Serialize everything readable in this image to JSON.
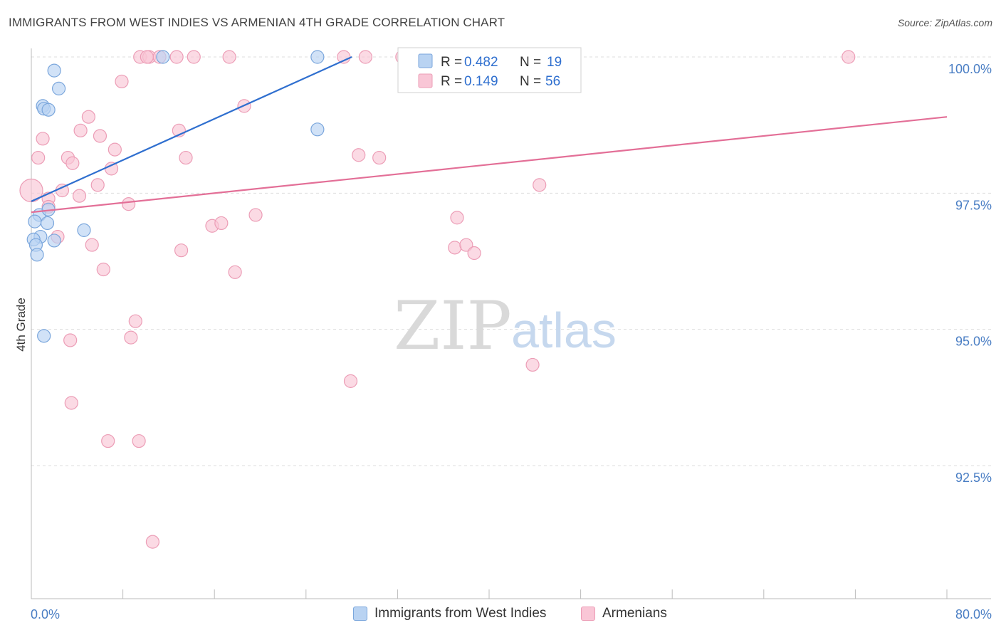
{
  "title": "IMMIGRANTS FROM WEST INDIES VS ARMENIAN 4TH GRADE CORRELATION CHART",
  "source": "Source: ZipAtlas.com",
  "watermark": {
    "part1": "ZIP",
    "part2": "atlas"
  },
  "colors": {
    "blue_fill": "#b9d3f2",
    "blue_stroke": "#7aa6dc",
    "blue_line": "#2f6fcf",
    "pink_fill": "#f9c6d6",
    "pink_stroke": "#ec9db6",
    "pink_line": "#e36f97",
    "tick_text": "#4a7ec4",
    "grid": "#dddddd"
  },
  "legend_top": {
    "rows": [
      {
        "r_label": "R = ",
        "r_value": "0.482",
        "n_label": "N = ",
        "n_value": "19",
        "color": "blue"
      },
      {
        "r_label": "R = ",
        "r_value": "0.149",
        "n_label": "N = ",
        "n_value": "56",
        "color": "pink"
      }
    ]
  },
  "legend_bottom": [
    {
      "label": "Immigrants from West Indies",
      "color": "blue"
    },
    {
      "label": "Armenians",
      "color": "pink"
    }
  ],
  "chart_data": {
    "type": "scatter",
    "title": "IMMIGRANTS FROM WEST INDIES VS ARMENIAN 4TH GRADE CORRELATION CHART",
    "xlabel": "",
    "ylabel": "4th Grade",
    "xlim": [
      0,
      80
    ],
    "ylim": [
      90.9,
      100.4
    ],
    "x_tick_labels": [
      "0.0%",
      "80.0%"
    ],
    "y_ticks": [
      92.5,
      95.0,
      97.5,
      100.0
    ],
    "y_tick_labels": [
      "92.5%",
      "95.0%",
      "97.5%",
      "100.0%"
    ],
    "grid": "horizontal dashed",
    "legend": "top-center",
    "series": [
      {
        "name": "Immigrants from West Indies",
        "color": "blue",
        "r": 0.482,
        "n": 19,
        "trend": {
          "x": [
            0,
            28.0
          ],
          "y": [
            97.35,
            100.0
          ]
        },
        "points": [
          [
            2.0,
            99.75
          ],
          [
            2.4,
            99.42
          ],
          [
            1.0,
            99.1
          ],
          [
            1.1,
            99.05
          ],
          [
            1.5,
            99.03
          ],
          [
            25.0,
            98.67
          ],
          [
            11.5,
            100.0
          ],
          [
            25.0,
            100.0
          ],
          [
            0.7,
            97.1
          ],
          [
            1.5,
            97.2
          ],
          [
            0.3,
            96.98
          ],
          [
            1.4,
            96.95
          ],
          [
            0.8,
            96.7
          ],
          [
            0.2,
            96.65
          ],
          [
            4.6,
            96.82
          ],
          [
            2.0,
            96.63
          ],
          [
            0.4,
            96.55
          ],
          [
            0.5,
            96.37
          ],
          [
            1.1,
            94.88
          ]
        ]
      },
      {
        "name": "Armenians",
        "color": "pink",
        "r": 0.149,
        "n": 56,
        "trend": {
          "x": [
            0,
            80.0
          ],
          "y": [
            97.15,
            98.9
          ]
        },
        "points": [
          [
            0.0,
            97.55
          ],
          [
            0.6,
            98.15
          ],
          [
            1.0,
            98.5
          ],
          [
            1.5,
            97.4
          ],
          [
            2.7,
            97.55
          ],
          [
            3.2,
            98.15
          ],
          [
            3.6,
            98.05
          ],
          [
            4.3,
            98.65
          ],
          [
            5.0,
            98.9
          ],
          [
            6.0,
            98.55
          ],
          [
            7.3,
            98.3
          ],
          [
            7.0,
            97.95
          ],
          [
            5.8,
            97.65
          ],
          [
            4.2,
            97.45
          ],
          [
            1.5,
            97.25
          ],
          [
            2.3,
            96.7
          ],
          [
            5.3,
            96.55
          ],
          [
            6.3,
            96.1
          ],
          [
            7.9,
            99.55
          ],
          [
            8.5,
            97.3
          ],
          [
            9.1,
            95.15
          ],
          [
            8.7,
            94.85
          ],
          [
            9.5,
            100.0
          ],
          [
            10.3,
            100.0
          ],
          [
            11.2,
            100.0
          ],
          [
            12.7,
            100.0
          ],
          [
            14.2,
            100.0
          ],
          [
            17.3,
            100.0
          ],
          [
            12.9,
            98.65
          ],
          [
            13.5,
            98.15
          ],
          [
            13.1,
            96.45
          ],
          [
            15.8,
            96.9
          ],
          [
            16.6,
            96.95
          ],
          [
            18.6,
            99.1
          ],
          [
            17.8,
            96.05
          ],
          [
            19.6,
            97.1
          ],
          [
            28.6,
            98.2
          ],
          [
            30.4,
            98.15
          ],
          [
            27.3,
            100.0
          ],
          [
            29.2,
            100.0
          ],
          [
            32.4,
            100.0
          ],
          [
            44.4,
            97.65
          ],
          [
            37.0,
            96.5
          ],
          [
            38.0,
            96.55
          ],
          [
            38.7,
            96.4
          ],
          [
            37.2,
            97.05
          ],
          [
            27.9,
            94.05
          ],
          [
            36.8,
            100.0
          ],
          [
            43.8,
            94.35
          ],
          [
            71.4,
            100.0
          ],
          [
            3.4,
            94.8
          ],
          [
            3.5,
            93.65
          ],
          [
            6.7,
            92.95
          ],
          [
            9.4,
            92.95
          ],
          [
            10.6,
            91.1
          ],
          [
            10.1,
            100.0
          ]
        ]
      }
    ]
  }
}
